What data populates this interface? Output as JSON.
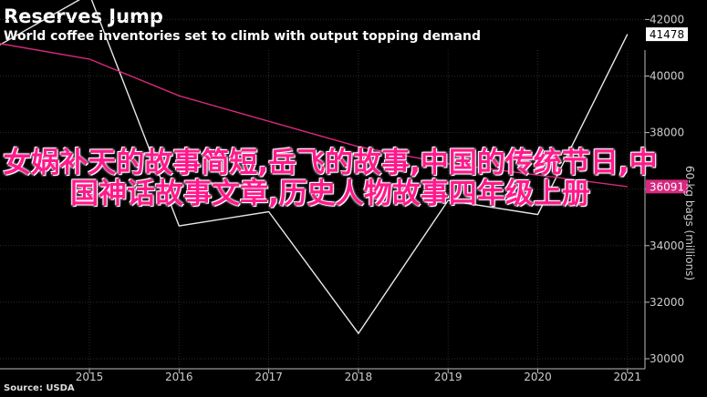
{
  "chart_data": {
    "type": "line",
    "title": "Reserves Jump",
    "subtitle": "World coffee inventories set to climb with output topping demand",
    "ylabel": "60-kg bags (millions)",
    "source": "Source: USDA",
    "x": [
      2014,
      2015,
      2016,
      2017,
      2018,
      2019,
      2020,
      2021
    ],
    "x_ticks": [
      "2015",
      "2016",
      "2017",
      "2018",
      "2019",
      "2020",
      "2021"
    ],
    "y_ticks": [
      "30000",
      "32000",
      "34000",
      "36000",
      "38000",
      "40000",
      "42000"
    ],
    "ylim": [
      29500,
      43500
    ],
    "series": [
      {
        "values": [
          41100,
          42900,
          34700,
          35200,
          30900,
          35600,
          35100,
          41478
        ],
        "color": "#e8e8e8",
        "last_label": "41478"
      },
      {
        "values": [
          41150,
          40600,
          39300,
          38400,
          37500,
          36900,
          36500,
          36091
        ],
        "color": "#d6297f",
        "last_label": "36091"
      }
    ],
    "grid": true
  },
  "overlay_text": "女娲补天的故事简短,岳飞的故事,中国的传统节日,中国神话故事文章,历史人物故事四年级上册"
}
